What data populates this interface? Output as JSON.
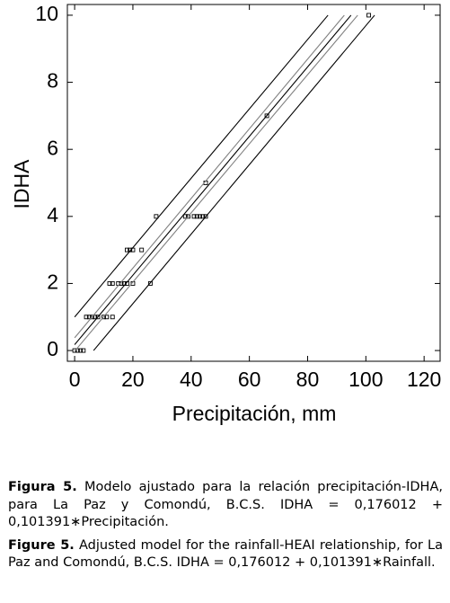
{
  "chart_data": {
    "type": "scatter",
    "x_label": "Precipitación, mm",
    "y_label": "IDHA",
    "xlim": [
      -2.5,
      125.5
    ],
    "ylim": [
      -0.32,
      10.32
    ],
    "xticks": [
      0,
      20,
      40,
      60,
      80,
      100,
      120
    ],
    "yticks": [
      0,
      2,
      4,
      6,
      8,
      10
    ],
    "series": [
      {
        "type": "scatter",
        "color": "#000000",
        "x": [
          0,
          1,
          2,
          3,
          4,
          5,
          6,
          7,
          8,
          10,
          11,
          13,
          12,
          13,
          15,
          16,
          17,
          18,
          20,
          26,
          18,
          19,
          20,
          23,
          28,
          38,
          39,
          41,
          42,
          43,
          44,
          45,
          45,
          66,
          101
        ],
        "values": [
          0,
          0,
          0,
          0,
          1,
          1,
          1,
          1,
          1,
          1,
          1,
          1,
          2,
          2,
          2,
          2,
          2,
          2,
          2,
          2,
          3,
          3,
          3,
          3,
          4,
          4,
          4,
          4,
          4,
          4,
          4,
          4,
          5,
          7,
          10
        ]
      },
      {
        "type": "line",
        "color": "#000000",
        "x": [
          0,
          94.9
        ],
        "values": [
          0.176012,
          10
        ]
      },
      {
        "type": "line",
        "color": "#808080",
        "x": [
          0,
          92.6
        ],
        "values": [
          0.38,
          10
        ]
      },
      {
        "type": "line",
        "color": "#808080",
        "x": [
          0,
          97.2
        ],
        "values": [
          -0.02,
          10
        ]
      },
      {
        "type": "line",
        "color": "#000000",
        "x": [
          0,
          87
        ],
        "values": [
          1.0,
          10
        ]
      },
      {
        "type": "line",
        "color": "#000000",
        "x": [
          6.5,
          103
        ],
        "values": [
          0,
          10
        ]
      }
    ]
  },
  "caption": [
    {
      "label": "Figura 5.",
      "text": "Modelo ajustado para la relación precipitación-IDHA, para La Paz y Comondú, B.C.S. IDHA = 0,176012 + 0,101391∗Precipitación."
    },
    {
      "label": "Figure 5.",
      "text": "Adjusted model for the rainfall-HEAI relationship, for La Paz and Comondú, B.C.S. IDHA = 0,176012 + 0,101391∗Rainfall."
    }
  ]
}
